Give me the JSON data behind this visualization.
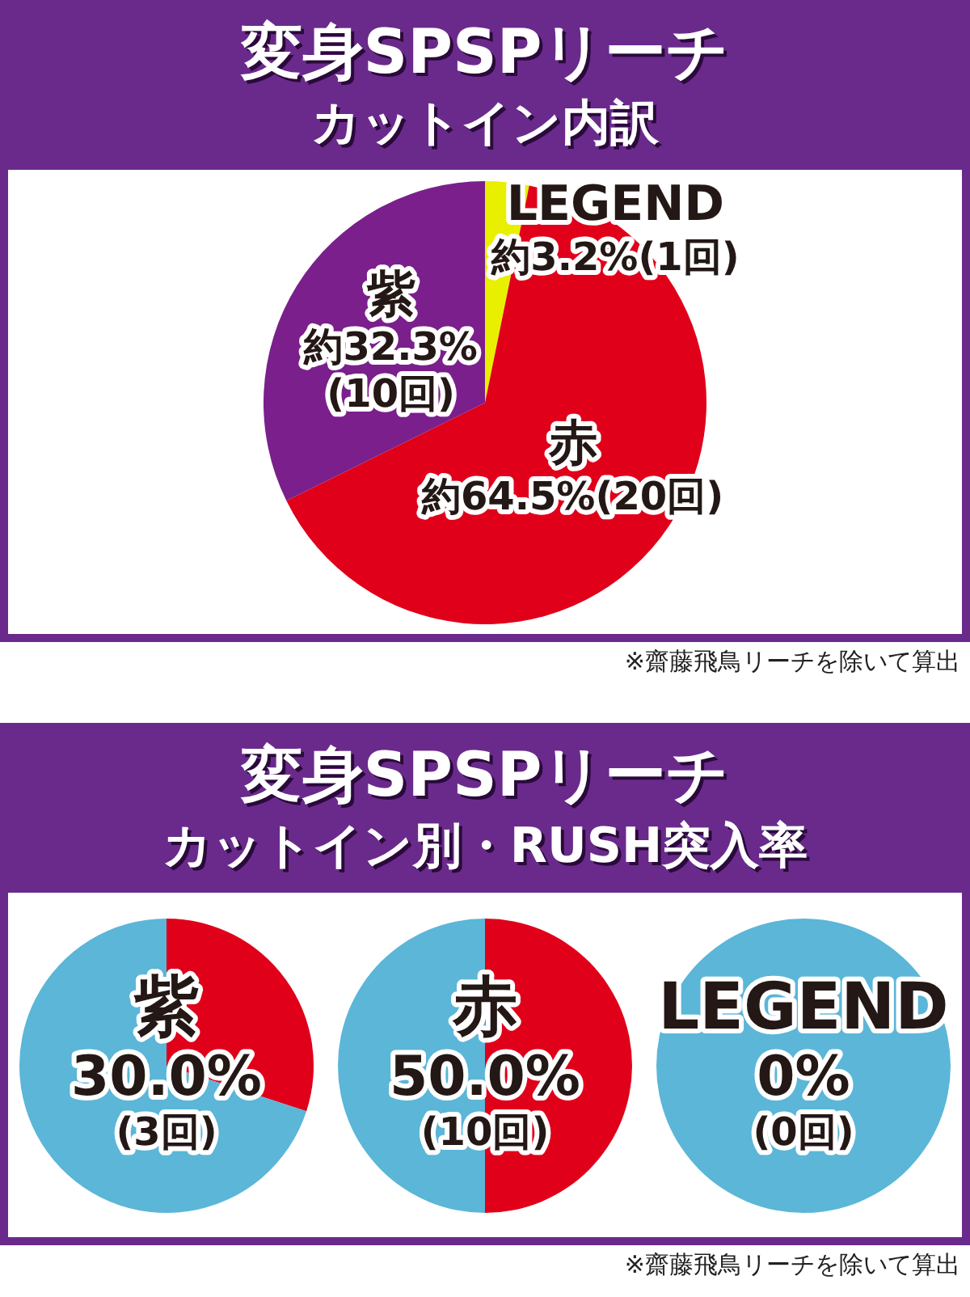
{
  "chart_data": [
    {
      "type": "pie",
      "title": "変身SPSPリーチ",
      "subtitle": "カットイン内訳",
      "categories": [
        "LEGEND",
        "赤",
        "紫"
      ],
      "values": [
        3.2,
        64.5,
        32.3
      ],
      "colors": [
        "#e8f000",
        "#e0001a",
        "#7a1f8c"
      ],
      "value_labels": [
        "約3.2%(1回)",
        "約64.5%(20回)",
        "約32.3%\n(10回)"
      ],
      "annotations": [
        "※齋藤飛鳥リーチを除いて算出"
      ]
    },
    {
      "type": "other",
      "title": "変身SPSPリーチ",
      "subtitle": "カットイン別・RUSH突入率"
    },
    {
      "type": "pie",
      "title": "紫",
      "categories": [
        null,
        null
      ],
      "values": [
        30.0,
        70.0
      ],
      "colors": [
        "#e0001a",
        "#5bb6d8"
      ],
      "annotations": [
        "30.0%\n(3回)"
      ]
    },
    {
      "type": "pie",
      "title": "赤",
      "categories": [
        null,
        null
      ],
      "values": [
        50.0,
        50.0
      ],
      "colors": [
        "#e0001a",
        "#5bb6d8"
      ],
      "annotations": [
        "50.0%\n(10回)"
      ]
    },
    {
      "type": "pie",
      "title": "LEGEND",
      "categories": [
        null,
        null
      ],
      "values": [
        0,
        100
      ],
      "colors": [
        "#e0001a",
        "#5bb6d8"
      ],
      "annotations": [
        "0%\n(0回)",
        "※齋藤飛鳥リーチを除いて算出"
      ]
    }
  ]
}
